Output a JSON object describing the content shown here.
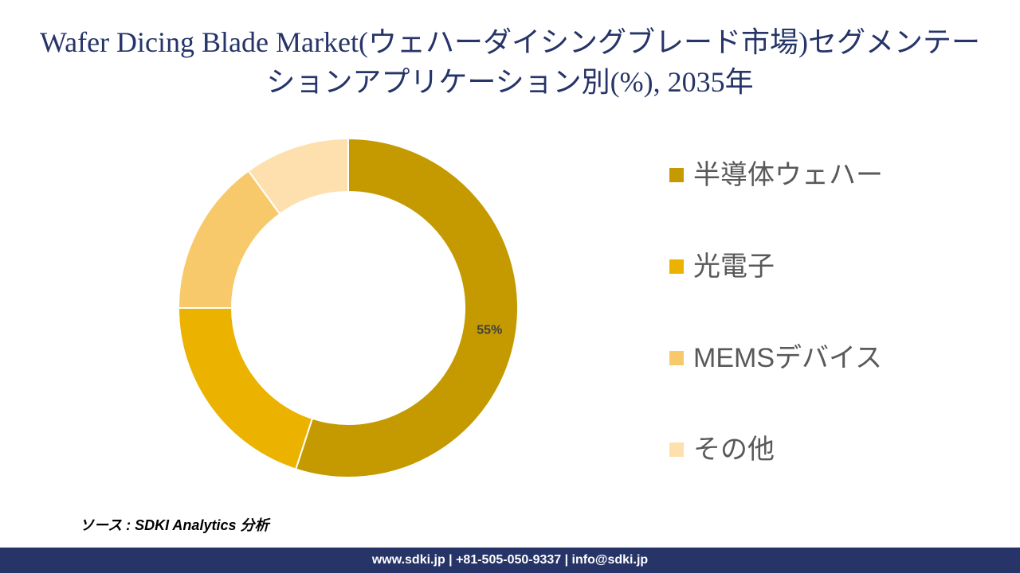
{
  "chart_data": {
    "type": "donut",
    "title": "Wafer Dicing Blade Market(ウェハーダイシングブレード市場)セグメンテーションアプリケーション別(%), 2035年",
    "categories": [
      "半導体ウェハー",
      "光電子",
      "MEMSデバイス",
      "その他"
    ],
    "values": [
      55,
      20,
      15,
      10
    ],
    "value_labels": [
      "55%",
      null,
      null,
      null
    ],
    "colors": [
      "#c49a00",
      "#ebb300",
      "#f8c96a",
      "#fde0ad"
    ],
    "source": "ソース : SDKI Analytics 分析",
    "footer": "www.sdki.jp | +81-505-050-9337 | info@sdki.jp"
  }
}
